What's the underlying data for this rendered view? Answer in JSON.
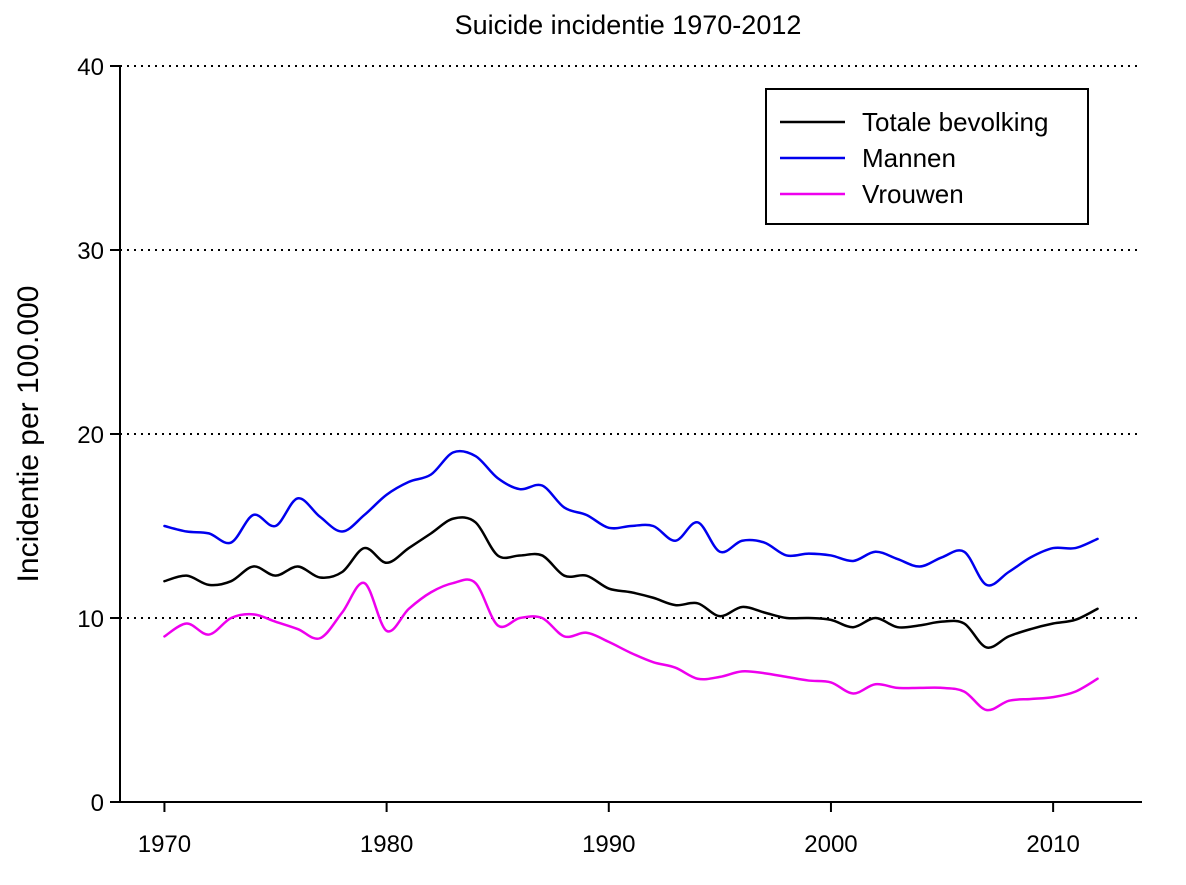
{
  "chart_data": {
    "type": "line",
    "title": "Suicide incidentie 1970-2012",
    "xlabel": "",
    "ylabel": "Incidentie per 100.000",
    "xlim": [
      1968,
      2014
    ],
    "ylim": [
      0,
      40
    ],
    "xticks": [
      1970,
      1980,
      1990,
      2000,
      2010
    ],
    "yticks": [
      0,
      10,
      20,
      30,
      40
    ],
    "grid": "horizontal dotted at 10, 20, 30, 40",
    "legend_position": "top-right",
    "x": [
      1970,
      1971,
      1972,
      1973,
      1974,
      1975,
      1976,
      1977,
      1978,
      1979,
      1980,
      1981,
      1982,
      1983,
      1984,
      1985,
      1986,
      1987,
      1988,
      1989,
      1990,
      1991,
      1992,
      1993,
      1994,
      1995,
      1996,
      1997,
      1998,
      1999,
      2000,
      2001,
      2002,
      2003,
      2004,
      2005,
      2006,
      2007,
      2008,
      2009,
      2010,
      2011,
      2012
    ],
    "series": [
      {
        "name": "Totale bevolking",
        "color": "#000000",
        "values": [
          12.0,
          12.3,
          11.8,
          12.0,
          12.8,
          12.3,
          12.8,
          12.2,
          12.5,
          13.8,
          13.0,
          13.8,
          14.6,
          15.4,
          15.2,
          13.4,
          13.4,
          13.4,
          12.3,
          12.3,
          11.6,
          11.4,
          11.1,
          10.7,
          10.8,
          10.1,
          10.6,
          10.3,
          10.0,
          10.0,
          9.9,
          9.5,
          10.0,
          9.5,
          9.6,
          9.8,
          9.7,
          8.4,
          9.0,
          9.4,
          9.7,
          9.9,
          10.5
        ]
      },
      {
        "name": "Mannen",
        "color": "#0000ee",
        "values": [
          15.0,
          14.7,
          14.6,
          14.1,
          15.6,
          15.0,
          16.5,
          15.5,
          14.7,
          15.6,
          16.7,
          17.4,
          17.8,
          19.0,
          18.8,
          17.6,
          17.0,
          17.2,
          16.0,
          15.6,
          14.9,
          15.0,
          15.0,
          14.2,
          15.2,
          13.6,
          14.2,
          14.1,
          13.4,
          13.5,
          13.4,
          13.1,
          13.6,
          13.2,
          12.8,
          13.3,
          13.6,
          11.8,
          12.5,
          13.3,
          13.8,
          13.8,
          14.3
        ]
      },
      {
        "name": "Vrouwen",
        "color": "#ee00ee",
        "values": [
          9.0,
          9.7,
          9.1,
          10.0,
          10.2,
          9.8,
          9.4,
          8.9,
          10.3,
          11.9,
          9.3,
          10.5,
          11.4,
          11.9,
          11.9,
          9.6,
          10.0,
          10.0,
          9.0,
          9.2,
          8.7,
          8.1,
          7.6,
          7.3,
          6.7,
          6.8,
          7.1,
          7.0,
          6.8,
          6.6,
          6.5,
          5.9,
          6.4,
          6.2,
          6.2,
          6.2,
          6.0,
          5.0,
          5.5,
          5.6,
          5.7,
          6.0,
          6.7
        ]
      }
    ]
  }
}
